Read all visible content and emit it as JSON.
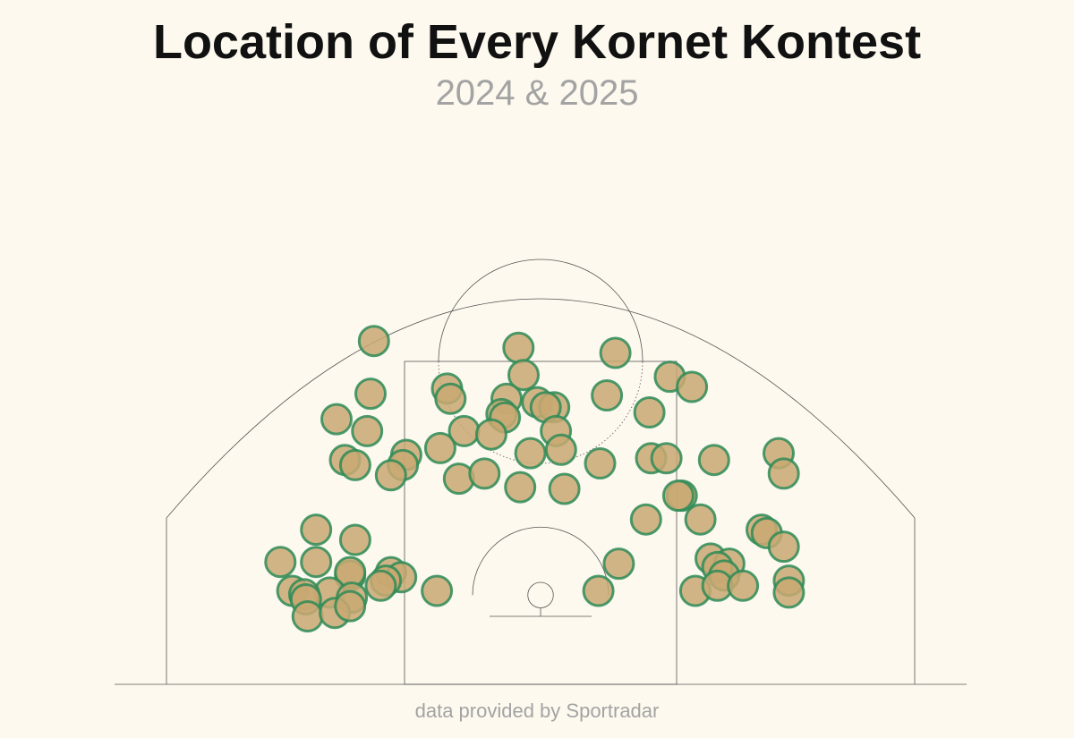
{
  "chart_data": {
    "type": "scatter",
    "title": "Location of Every Kornet Kontest",
    "subtitle": "2024 & 2025",
    "caption": "data provided by Sportradar",
    "xlabel": "",
    "ylabel": "",
    "units": "feet from the center of the basket (x) and from the baseline (y), half-court",
    "xlim": [
      -25,
      25
    ],
    "ylim": [
      0,
      29
    ],
    "grid": false,
    "legend": "none",
    "marker_fill": "#c9a872",
    "marker_stroke": "#2e8b57",
    "court_line_color": "#555555",
    "points": [
      {
        "x": -9.8,
        "y": 20.2
      },
      {
        "x": -1.3,
        "y": 19.8
      },
      {
        "x": 4.4,
        "y": 19.5
      },
      {
        "x": 7.6,
        "y": 18.1
      },
      {
        "x": 8.9,
        "y": 17.5
      },
      {
        "x": -10.0,
        "y": 17.1
      },
      {
        "x": -5.5,
        "y": 17.4
      },
      {
        "x": -1.0,
        "y": 18.2
      },
      {
        "x": -5.3,
        "y": 16.8
      },
      {
        "x": -2.0,
        "y": 16.8
      },
      {
        "x": -0.2,
        "y": 16.6
      },
      {
        "x": 0.8,
        "y": 16.3
      },
      {
        "x": 0.3,
        "y": 16.3
      },
      {
        "x": -2.3,
        "y": 15.9
      },
      {
        "x": -2.1,
        "y": 15.7
      },
      {
        "x": 3.9,
        "y": 17.0
      },
      {
        "x": 6.4,
        "y": 16.0
      },
      {
        "x": -12.0,
        "y": 15.6
      },
      {
        "x": -10.2,
        "y": 14.9
      },
      {
        "x": -4.5,
        "y": 14.9
      },
      {
        "x": -2.9,
        "y": 14.7
      },
      {
        "x": 0.9,
        "y": 14.9
      },
      {
        "x": -5.9,
        "y": 13.9
      },
      {
        "x": -7.9,
        "y": 13.5
      },
      {
        "x": -11.5,
        "y": 13.2
      },
      {
        "x": -10.9,
        "y": 12.9
      },
      {
        "x": -8.1,
        "y": 12.9
      },
      {
        "x": -8.8,
        "y": 12.3
      },
      {
        "x": -4.8,
        "y": 12.1
      },
      {
        "x": -3.3,
        "y": 12.4
      },
      {
        "x": -0.6,
        "y": 13.6
      },
      {
        "x": 1.2,
        "y": 13.8
      },
      {
        "x": 3.5,
        "y": 13.0
      },
      {
        "x": 6.5,
        "y": 13.3
      },
      {
        "x": 7.4,
        "y": 13.3
      },
      {
        "x": 10.2,
        "y": 13.2
      },
      {
        "x": -1.2,
        "y": 11.6
      },
      {
        "x": 1.4,
        "y": 11.5
      },
      {
        "x": 8.3,
        "y": 11.1
      },
      {
        "x": 8.1,
        "y": 11.1
      },
      {
        "x": 14.0,
        "y": 13.6
      },
      {
        "x": 14.3,
        "y": 12.4
      },
      {
        "x": 6.2,
        "y": 9.7
      },
      {
        "x": 9.4,
        "y": 9.7
      },
      {
        "x": -13.2,
        "y": 9.1
      },
      {
        "x": 13.0,
        "y": 9.1
      },
      {
        "x": 13.3,
        "y": 8.9
      },
      {
        "x": 14.3,
        "y": 8.1
      },
      {
        "x": -10.9,
        "y": 8.5
      },
      {
        "x": -15.3,
        "y": 7.2
      },
      {
        "x": -13.2,
        "y": 7.2
      },
      {
        "x": 4.6,
        "y": 7.1
      },
      {
        "x": 10.0,
        "y": 7.4
      },
      {
        "x": 11.1,
        "y": 7.1
      },
      {
        "x": 10.4,
        "y": 6.9
      },
      {
        "x": 10.8,
        "y": 6.4
      },
      {
        "x": -11.2,
        "y": 6.4
      },
      {
        "x": -11.2,
        "y": 6.6
      },
      {
        "x": -8.8,
        "y": 6.6
      },
      {
        "x": -8.2,
        "y": 6.3
      },
      {
        "x": -9.1,
        "y": 6.1
      },
      {
        "x": -9.4,
        "y": 5.8
      },
      {
        "x": -12.4,
        "y": 5.4
      },
      {
        "x": -14.6,
        "y": 5.5
      },
      {
        "x": -13.9,
        "y": 5.3
      },
      {
        "x": -13.8,
        "y": 5.0
      },
      {
        "x": -11.1,
        "y": 5.1
      },
      {
        "x": -6.1,
        "y": 5.5
      },
      {
        "x": 3.4,
        "y": 5.5
      },
      {
        "x": 9.1,
        "y": 5.5
      },
      {
        "x": 10.4,
        "y": 5.8
      },
      {
        "x": 11.9,
        "y": 5.8
      },
      {
        "x": 14.6,
        "y": 6.1
      },
      {
        "x": 14.6,
        "y": 5.4
      },
      {
        "x": -13.7,
        "y": 4.0
      },
      {
        "x": -12.1,
        "y": 4.2
      },
      {
        "x": -11.2,
        "y": 4.6
      }
    ]
  }
}
